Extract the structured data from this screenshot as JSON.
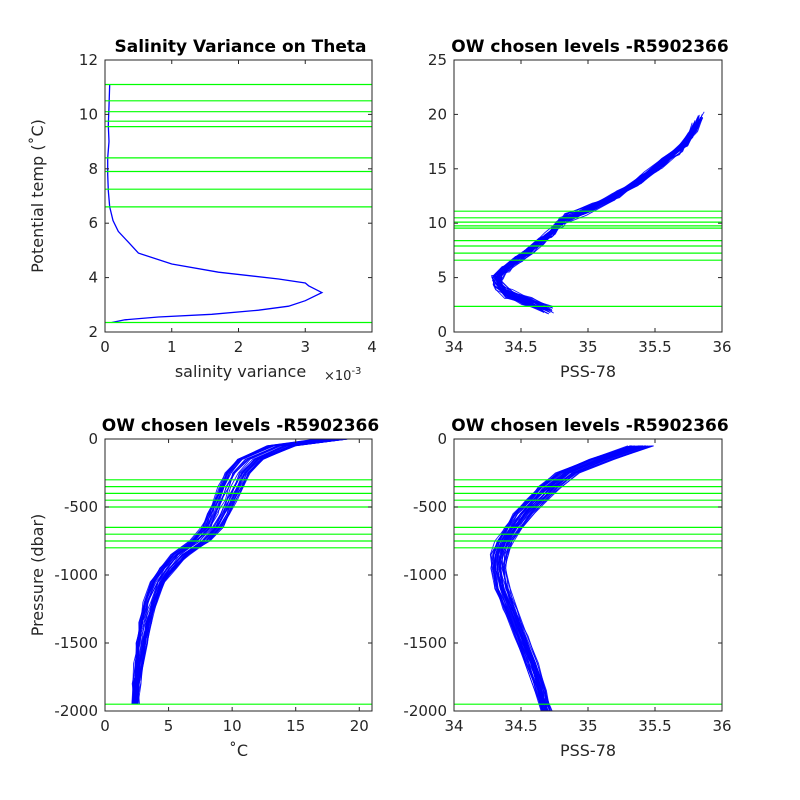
{
  "chart_data": [
    {
      "type": "line",
      "title": "Salinity Variance on Theta",
      "xlabel": "salinity variance",
      "x_exponent_label": "×10",
      "x_exponent_power": "-3",
      "ylabel": "Potential temp (˚C)",
      "xlim": [
        0,
        4
      ],
      "ylim": [
        2,
        12
      ],
      "xticks": [
        "0",
        "1",
        "2",
        "3",
        "4"
      ],
      "yticks": [
        "2",
        "4",
        "6",
        "8",
        "10",
        "12"
      ],
      "line_color": "#0000ff",
      "levels_color": "#00ff00",
      "series": [
        {
          "x": [
            0.1,
            0.3,
            0.8,
            1.6,
            2.3,
            2.75,
            3.0,
            3.25,
            3.05,
            3.0,
            2.6,
            1.7,
            1.0,
            0.5,
            0.35,
            0.2,
            0.12,
            0.07,
            0.05,
            0.04,
            0.04,
            0.06,
            0.05,
            0.06,
            0.07
          ],
          "y": [
            2.35,
            2.45,
            2.55,
            2.65,
            2.8,
            2.95,
            3.15,
            3.45,
            3.7,
            3.8,
            3.95,
            4.2,
            4.5,
            4.9,
            5.3,
            5.7,
            6.1,
            6.6,
            7.2,
            7.8,
            8.4,
            9.0,
            9.6,
            10.3,
            11.1
          ]
        }
      ],
      "levels": [
        2.35,
        6.6,
        7.25,
        7.9,
        8.4,
        9.55,
        9.75,
        10.1,
        10.5,
        11.1
      ]
    },
    {
      "type": "line",
      "title": "OW chosen levels -R5902366",
      "xlabel": "PSS-78",
      "ylabel": "",
      "xlim": [
        34,
        36
      ],
      "ylim": [
        0,
        25
      ],
      "xticks": [
        "34",
        "34.5",
        "35",
        "35.5",
        "36"
      ],
      "yticks": [
        "0",
        "5",
        "10",
        "15",
        "20",
        "25"
      ],
      "line_color": "#0000ff",
      "levels_color": "#00ff00",
      "series": [
        {
          "x": [
            34.7,
            34.55,
            34.4,
            34.33,
            34.32,
            34.38,
            34.47,
            34.55,
            34.63,
            34.72,
            34.78,
            34.82,
            35.0,
            35.2,
            35.4,
            35.55,
            35.7,
            35.78,
            35.82
          ],
          "y": [
            2.0,
            2.8,
            3.5,
            4.3,
            5.0,
            5.8,
            6.6,
            7.4,
            8.2,
            9.0,
            9.8,
            10.4,
            11.2,
            12.5,
            14.0,
            15.5,
            17.0,
            18.3,
            19.5
          ]
        }
      ],
      "levels": [
        2.35,
        6.6,
        7.25,
        7.9,
        8.4,
        9.55,
        9.75,
        10.1,
        10.5,
        11.1
      ]
    },
    {
      "type": "line",
      "title": "OW chosen levels -R5902366",
      "xlabel": "˚C",
      "ylabel": "Pressure (dbar)",
      "xlim": [
        0,
        21
      ],
      "ylim": [
        -2000,
        0
      ],
      "xticks": [
        "0",
        "5",
        "10",
        "15",
        "20"
      ],
      "yticks": [
        "-2000",
        "-1500",
        "-1000",
        "-500",
        "0"
      ],
      "line_color": "#0000ff",
      "levels_color": "#00ff00",
      "series": [
        {
          "x": [
            18.0,
            14.0,
            11.5,
            10.5,
            10.0,
            9.5,
            9.0,
            8.5,
            7.5,
            6.0,
            5.0,
            4.2,
            3.6,
            3.2,
            2.9,
            2.7,
            2.5,
            2.4
          ],
          "y": [
            0,
            -50,
            -150,
            -250,
            -350,
            -450,
            -550,
            -650,
            -750,
            -850,
            -950,
            -1050,
            -1200,
            -1350,
            -1500,
            -1650,
            -1800,
            -1950
          ]
        }
      ],
      "levels": [
        -300,
        -350,
        -400,
        -450,
        -500,
        -650,
        -700,
        -750,
        -800,
        -1950
      ]
    },
    {
      "type": "line",
      "title": "OW chosen levels -R5902366",
      "xlabel": "PSS-78",
      "ylabel": "",
      "xlim": [
        34,
        36
      ],
      "ylim": [
        -2000,
        0
      ],
      "xticks": [
        "34",
        "34.5",
        "35",
        "35.5",
        "36"
      ],
      "yticks": [
        "-2000",
        "-1500",
        "-1000",
        "-500",
        "0"
      ],
      "line_color": "#0000ff",
      "levels_color": "#00ff00",
      "series": [
        {
          "x": [
            35.4,
            35.1,
            34.85,
            34.72,
            34.62,
            34.52,
            34.45,
            34.38,
            34.34,
            34.33,
            34.36,
            34.42,
            34.5,
            34.58,
            34.65,
            34.69
          ],
          "y": [
            -50,
            -150,
            -250,
            -350,
            -450,
            -550,
            -650,
            -750,
            -850,
            -950,
            -1100,
            -1250,
            -1450,
            -1650,
            -1850,
            -2000
          ]
        }
      ],
      "levels": [
        -300,
        -350,
        -400,
        -450,
        -500,
        -650,
        -700,
        -750,
        -800,
        -1950
      ]
    }
  ]
}
